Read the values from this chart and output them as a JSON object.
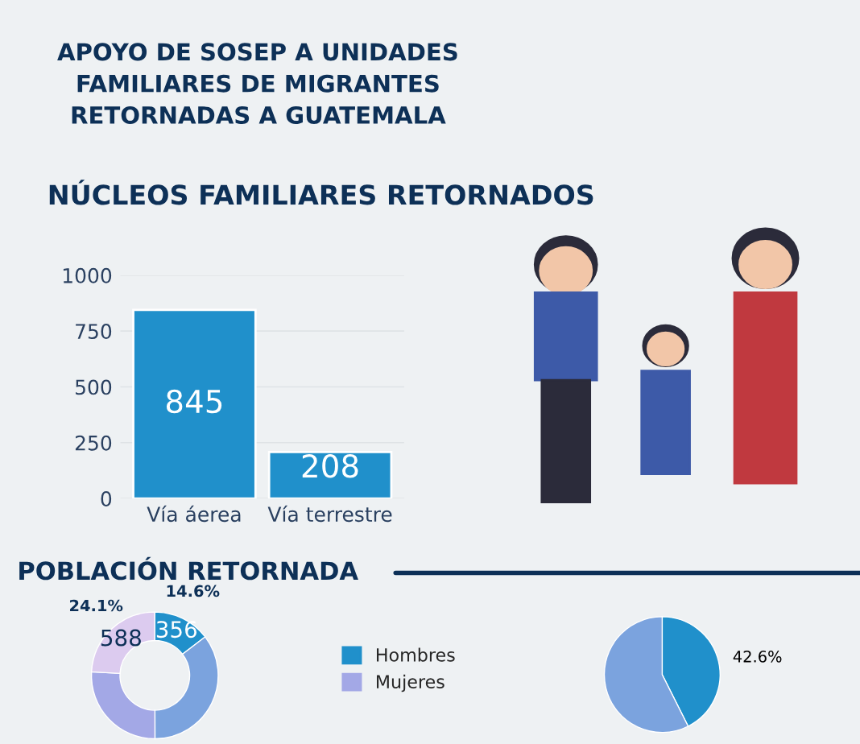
{
  "chart_data": [
    {
      "type": "bar",
      "title": "APOYO DE SOSEP A UNIDADES\nFAMILIARES DE MIGRANTES\nRETORNADAS A GUATEMALA",
      "subtitle": "NÚCLEOS FAMILIARES RETORNADOS",
      "categories": [
        "Vía áerea",
        "Vía terrestre"
      ],
      "values": [
        845,
        208
      ],
      "color": "#2090cb",
      "ylim": [
        0,
        1000
      ],
      "yticks": [
        0,
        250,
        500,
        750,
        1000
      ],
      "grid": "y",
      "data_labels": true
    },
    {
      "type": "donut",
      "title": "POBLACIÓN RETORNADA",
      "categories": [
        "Hombres",
        null,
        "Mujeres",
        null
      ],
      "values": [
        356,
        862,
        632,
        588
      ],
      "colors": [
        "#2090cb",
        "#7ba3de",
        "#a3a8e6",
        "#dccbef"
      ],
      "value_labels": [
        "356",
        null,
        null,
        "588"
      ],
      "annotations": [
        "14.6%",
        "24.1%"
      ],
      "legend": "right"
    },
    {
      "type": "pie",
      "categories": [
        null,
        null
      ],
      "values": [
        42.6,
        57.4
      ],
      "colors": [
        "#2090cb",
        "#7ba3de"
      ],
      "value_labels": [
        "42.6%",
        null
      ]
    }
  ]
}
